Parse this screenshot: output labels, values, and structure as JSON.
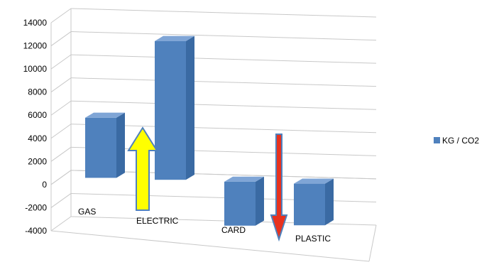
{
  "chart_data": {
    "type": "bar",
    "categories": [
      "GAS",
      "ELECTRIC",
      "CARD",
      "PLASTIC"
    ],
    "series": [
      {
        "name": "KG / CO2",
        "values": [
          5200,
          12000,
          -3800,
          -3600
        ]
      }
    ],
    "ylim": [
      -4000,
      14000
    ],
    "yticks": [
      "14000",
      "12000",
      "10000",
      "8000",
      "6000",
      "4000",
      "2000",
      "0",
      "-2000",
      "-4000"
    ],
    "grid": true,
    "legend": "right",
    "bar_color": "#4f81bd",
    "annotations": [
      {
        "shape": "arrow-up",
        "color": "#ffff00",
        "outline": "#4f81bd"
      },
      {
        "shape": "arrow-down",
        "color": "#e8321e",
        "outline": "#4f81bd"
      }
    ]
  }
}
